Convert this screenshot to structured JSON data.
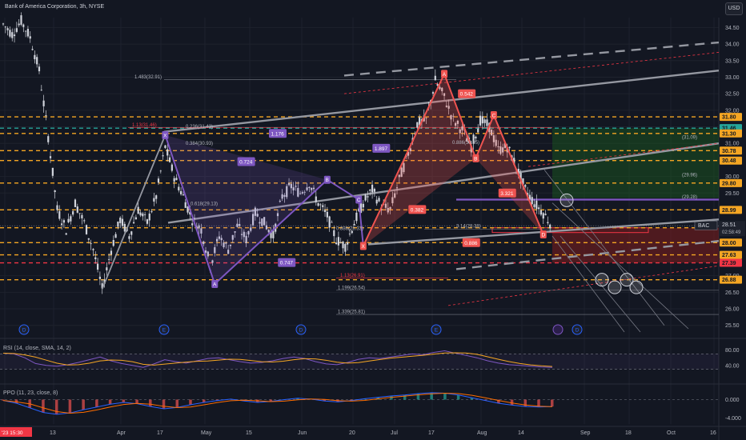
{
  "header": {
    "title": "Bank of America Corporation, 3h, NYSE",
    "currency": "USD"
  },
  "colors": {
    "bg": "#131722",
    "grid": "#1e222d",
    "candle": "#d1d4dc",
    "orange_dashed": "#f5a623",
    "red_level": "#f23645",
    "purple": "#7e57c2",
    "red_pattern": "#ef5350",
    "trend_gray": "#9598a1",
    "green_zone": "#1b5e20",
    "red_zone": "#7f1d1d",
    "rsi_line": "#7e57c2",
    "rsi_sma": "#f5a623"
  },
  "chart_data": {
    "type": "candlestick",
    "symbol": "BAC",
    "timeframe": "3h",
    "y_ticks": [
      "34.50",
      "34.00",
      "33.50",
      "33.00",
      "32.50",
      "32.00",
      "31.50",
      "31.00",
      "30.50",
      "30.00",
      "29.50",
      "29.00",
      "28.50",
      "28.00",
      "27.50",
      "27.00",
      "26.50",
      "26.00",
      "25.50"
    ],
    "ylim": [
      25.3,
      34.8
    ],
    "x_ticks": [
      "'23",
      "13",
      "Apr",
      "17",
      "May",
      "15",
      "Jun",
      "20",
      "Jul",
      "17",
      "Aug",
      "14",
      "Sep",
      "18",
      "Oct",
      "16"
    ],
    "price_path": [
      [
        0,
        34.6
      ],
      [
        2,
        34.3
      ],
      [
        4,
        34.7
      ],
      [
        6,
        34.2
      ],
      [
        8,
        33.2
      ],
      [
        10,
        31.2
      ],
      [
        12,
        29.0
      ],
      [
        14,
        28.4
      ],
      [
        16,
        29.2
      ],
      [
        18,
        28.6
      ],
      [
        20,
        27.8
      ],
      [
        22,
        26.6
      ],
      [
        24,
        27.8
      ],
      [
        26,
        28.7
      ],
      [
        28,
        28.2
      ],
      [
        30,
        29.0
      ],
      [
        32,
        28.6
      ],
      [
        34,
        29.4
      ],
      [
        36,
        30.9
      ],
      [
        38,
        30.0
      ],
      [
        40,
        29.4
      ],
      [
        42,
        28.7
      ],
      [
        44,
        28.4
      ],
      [
        46,
        27.3
      ],
      [
        48,
        28.2
      ],
      [
        50,
        27.8
      ],
      [
        52,
        28.5
      ],
      [
        54,
        28.1
      ],
      [
        56,
        28.9
      ],
      [
        58,
        28.6
      ],
      [
        60,
        28.2
      ],
      [
        62,
        29.4
      ],
      [
        64,
        29.7
      ],
      [
        66,
        29.5
      ],
      [
        68,
        29.8
      ],
      [
        70,
        29.2
      ],
      [
        72,
        28.8
      ],
      [
        74,
        28.1
      ],
      [
        76,
        27.9
      ],
      [
        78,
        28.6
      ],
      [
        80,
        29.2
      ],
      [
        82,
        29.6
      ],
      [
        84,
        29.1
      ],
      [
        86,
        29.0
      ],
      [
        88,
        29.9
      ],
      [
        90,
        30.7
      ],
      [
        92,
        31.6
      ],
      [
        94,
        31.7
      ],
      [
        96,
        32.9
      ],
      [
        98,
        32.4
      ],
      [
        100,
        31.7
      ],
      [
        102,
        31.4
      ],
      [
        104,
        30.9
      ],
      [
        106,
        31.7
      ],
      [
        108,
        31.5
      ],
      [
        110,
        30.8
      ],
      [
        112,
        30.9
      ],
      [
        114,
        30.3
      ],
      [
        116,
        29.6
      ],
      [
        118,
        29.2
      ],
      [
        120,
        28.9
      ],
      [
        122,
        28.5
      ]
    ],
    "horizontal_levels": [
      {
        "price": 31.8,
        "label": "31.80",
        "color": "#f5a623"
      },
      {
        "price": 31.46,
        "label": "31.46",
        "color": "#26a69a"
      },
      {
        "price": 31.3,
        "label": "31.30",
        "color": "#f5a623"
      },
      {
        "price": 30.78,
        "label": "30.78",
        "color": "#f5a623"
      },
      {
        "price": 30.48,
        "label": "30.48",
        "color": "#f5a623"
      },
      {
        "price": 29.8,
        "label": "29.80",
        "color": "#f5a623"
      },
      {
        "price": 28.99,
        "label": "28.99",
        "color": "#f5a623"
      },
      {
        "price": 28.45,
        "label": "28.45",
        "color": "#f5a623"
      },
      {
        "price": 28.0,
        "label": "28.00",
        "color": "#f5a623"
      },
      {
        "price": 27.63,
        "label": "27.63",
        "color": "#f5a623"
      },
      {
        "price": 27.39,
        "label": "27.39",
        "color": "#f23645"
      },
      {
        "price": 26.88,
        "label": "26.88",
        "color": "#f5a623"
      }
    ],
    "current_price": {
      "label": "BAC",
      "price": "28.51",
      "countdown": "02:58:49"
    },
    "fib_labels": [
      {
        "text": "1.483(32.91)",
        "price": 32.93
      },
      {
        "text": "1.13(31.46)",
        "price": 31.48
      },
      {
        "text": "0.236(31.43)",
        "price": 31.43
      },
      {
        "text": "0.384(30.93)",
        "price": 30.92
      },
      {
        "text": "0.618(29.13)",
        "price": 29.1
      },
      {
        "text": "0.886(28.33)",
        "price": 28.35
      },
      {
        "text": "3.14(28.38)",
        "price": 28.42
      },
      {
        "text": "1.13(26.91)",
        "price": 26.93
      },
      {
        "text": "1.199(26.54)",
        "price": 26.56
      },
      {
        "text": "1.339(25.81)",
        "price": 25.83
      },
      {
        "text": "0.886(30.95)",
        "price": 30.95
      },
      {
        "text": "(31.09)",
        "price": 31.1
      },
      {
        "text": "(29.96)",
        "price": 29.96
      },
      {
        "text": "(29.28)",
        "price": 29.3
      }
    ],
    "pattern_points": [
      {
        "label": "X",
        "pattern": "purple",
        "x": 36,
        "y": 31.25
      },
      {
        "label": "A",
        "pattern": "purple",
        "x": 47,
        "y": 26.75
      },
      {
        "label": "B",
        "pattern": "purple",
        "x": 72,
        "y": 29.9
      },
      {
        "label": "C",
        "pattern": "purple",
        "x": 79,
        "y": 29.3
      },
      {
        "label": "X",
        "pattern": "red",
        "x": 80,
        "y": 27.9
      },
      {
        "label": "A",
        "pattern": "red",
        "x": 98,
        "y": 33.1
      },
      {
        "label": "B",
        "pattern": "red",
        "x": 105,
        "y": 30.55
      },
      {
        "label": "C",
        "pattern": "red",
        "x": 109,
        "y": 31.85
      },
      {
        "label": "D",
        "pattern": "red",
        "x": 120,
        "y": 28.25
      }
    ],
    "ratio_badges": [
      {
        "text": "0.724",
        "color": "#7e57c2",
        "x": 54,
        "y": 30.45
      },
      {
        "text": "1.176",
        "color": "#7e57c2",
        "x": 61,
        "y": 31.3
      },
      {
        "text": "1.897",
        "color": "#7e57c2",
        "x": 84,
        "y": 30.85
      },
      {
        "text": "0.747",
        "color": "#7e57c2",
        "x": 63,
        "y": 27.4
      },
      {
        "text": "0.542",
        "color": "#ef5350",
        "x": 103,
        "y": 32.5
      },
      {
        "text": "0.382",
        "color": "#ef5350",
        "x": 92,
        "y": 29.0
      },
      {
        "text": "3.321",
        "color": "#ef5350",
        "x": 112,
        "y": 29.5
      },
      {
        "text": "0.886",
        "color": "#ef5350",
        "x": 104,
        "y": 28.0
      }
    ],
    "events": [
      "D",
      "E",
      "D",
      "E",
      "D"
    ],
    "rsi": {
      "label": "RSI (14, close, SMA, 14, 2)",
      "ticks": [
        "80.00",
        "40.00"
      ],
      "values": [
        72,
        70,
        60,
        45,
        40,
        38,
        42,
        48,
        55,
        62,
        52,
        45,
        40,
        35,
        44,
        55,
        50,
        46,
        52,
        58,
        60,
        55,
        50,
        46,
        48,
        52,
        58,
        62,
        58,
        50,
        44,
        42,
        48,
        56,
        60,
        58,
        62,
        66,
        70,
        68,
        74,
        78,
        72,
        66,
        60,
        52,
        46,
        42,
        40,
        38,
        36,
        35
      ]
    },
    "ppo": {
      "label": "PPO (11, 23, close, 8)",
      "ticks": [
        "0.000",
        "-4.000"
      ],
      "values": [
        -0.2,
        -0.8,
        -1.8,
        -2.8,
        -3.2,
        -2.9,
        -2.2,
        -1.6,
        -1.0,
        -0.6,
        -0.9,
        -1.5,
        -2.0,
        -1.7,
        -1.1,
        -0.6,
        -0.2,
        0.1,
        -0.3,
        -0.6,
        -0.4,
        0.0,
        0.3,
        0.1,
        -0.3,
        -0.5,
        -0.2,
        0.2,
        0.5,
        0.8,
        1.0,
        1.3,
        1.5,
        1.4,
        1.0,
        0.4,
        -0.2,
        -0.8,
        -1.2,
        -1.5,
        -1.6,
        -1.5
      ]
    }
  },
  "footer": {
    "date_badge": "'23  15:30"
  }
}
